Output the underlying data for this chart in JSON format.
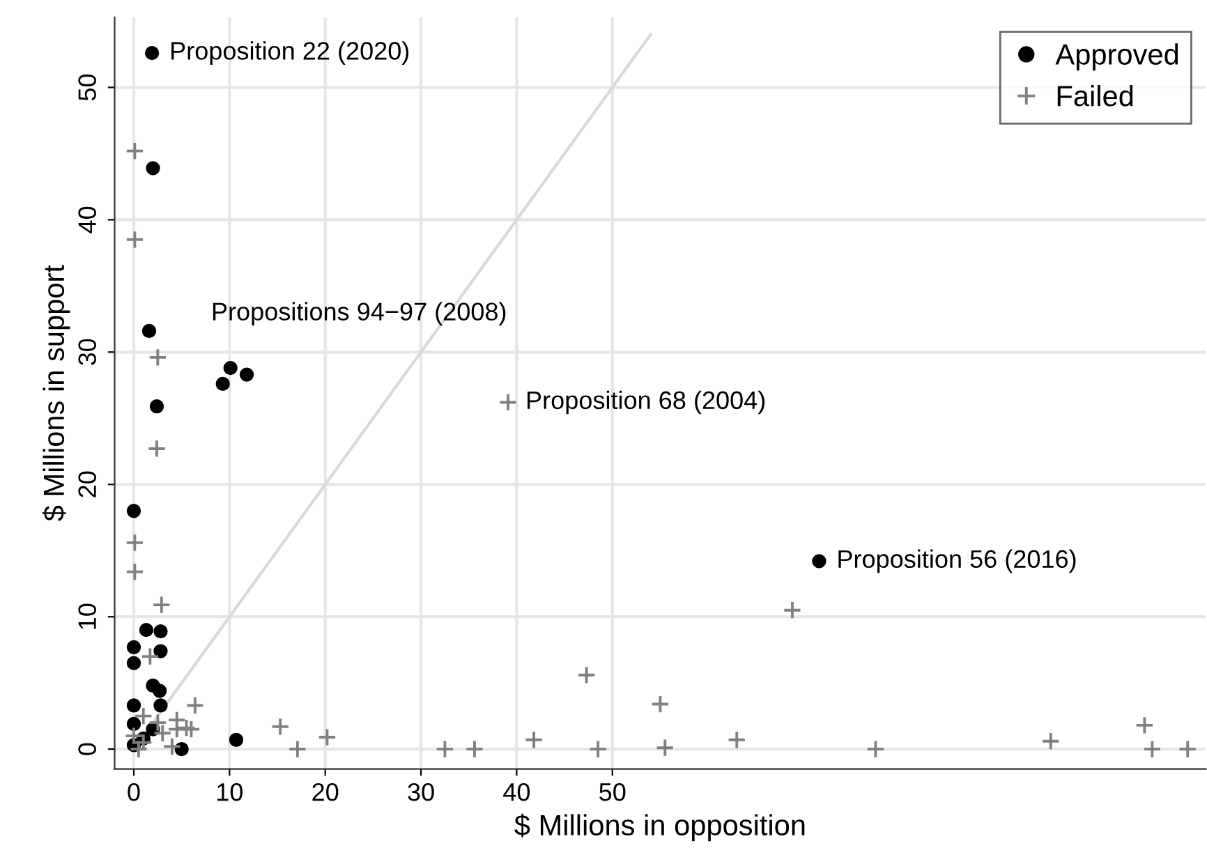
{
  "chart_data": {
    "type": "scatter",
    "xlabel": "$ Millions in opposition",
    "ylabel": "$ Millions in support",
    "xlim": [
      -2,
      112
    ],
    "ylim": [
      -1.5,
      55.3
    ],
    "xticks": [
      0,
      10,
      20,
      30,
      40,
      50
    ],
    "yticks": [
      0,
      10,
      20,
      30,
      40,
      50
    ],
    "grid": true,
    "legend": "top right",
    "series": [
      {
        "type": "line",
        "color": "#d9d9d9",
        "x": [
          0,
          54
        ],
        "values": [
          0,
          54
        ],
        "marker": "none"
      },
      {
        "name": "Approved",
        "color": "#000000",
        "marker": "circle",
        "x": [
          1.9,
          2.0,
          1.6,
          9.3,
          9.8,
          10.1,
          11.8,
          2.4,
          0,
          1.3,
          2.8,
          0,
          2.8,
          0,
          1.9,
          2.0,
          2.7,
          0,
          0,
          2.8,
          5.0,
          10.7,
          71.6,
          0,
          1.0,
          2.0
        ],
        "values": [
          52.6,
          43.9,
          31.6,
          27.6,
          null,
          28.8,
          28.3,
          25.9,
          18.0,
          9.0,
          8.9,
          7.7,
          7.4,
          6.5,
          null,
          4.8,
          4.4,
          3.3,
          1.9,
          3.3,
          0,
          0.7,
          14.2,
          0.3,
          0.8,
          1.5
        ]
      },
      {
        "name": "Failed",
        "color": "#808080",
        "marker": "cross",
        "x": [
          0.1,
          0.1,
          2.5,
          2.4,
          39.1,
          0.1,
          0.1,
          2.9,
          1.7,
          6.4,
          15.3,
          17.1,
          20.2,
          32.5,
          35.6,
          41.8,
          4.5,
          5.5,
          4.5,
          6.0,
          4.0,
          2.5,
          1.0,
          1.0,
          0,
          0.5,
          3.0,
          47.3,
          48.5,
          55.0,
          55.5,
          63.0,
          68.8,
          77.5,
          95.8,
          105.6,
          106.4,
          110.1
        ],
        "values": [
          45.2,
          38.5,
          29.6,
          22.7,
          26.2,
          15.6,
          13.4,
          10.9,
          7.0,
          3.3,
          1.7,
          0,
          0.9,
          0,
          0,
          0.7,
          1.5,
          1.6,
          2.2,
          1.5,
          0.2,
          2.0,
          2.5,
          0.5,
          1.0,
          0,
          1.2,
          5.6,
          0,
          3.4,
          0.1,
          0.7,
          10.5,
          0,
          0.6,
          1.8,
          0,
          0
        ]
      }
    ],
    "annotations": [
      {
        "text": "Proposition 22 (2020)",
        "x": 1.9,
        "y": 52.6
      },
      {
        "text": "Propositions 94−97 (2008)",
        "x": 10.1,
        "y": 28.8
      },
      {
        "text": "Proposition 68 (2004)",
        "x": 39.1,
        "y": 26.2
      },
      {
        "text": "Proposition 56 (2016)",
        "x": 71.6,
        "y": 14.2
      }
    ]
  }
}
